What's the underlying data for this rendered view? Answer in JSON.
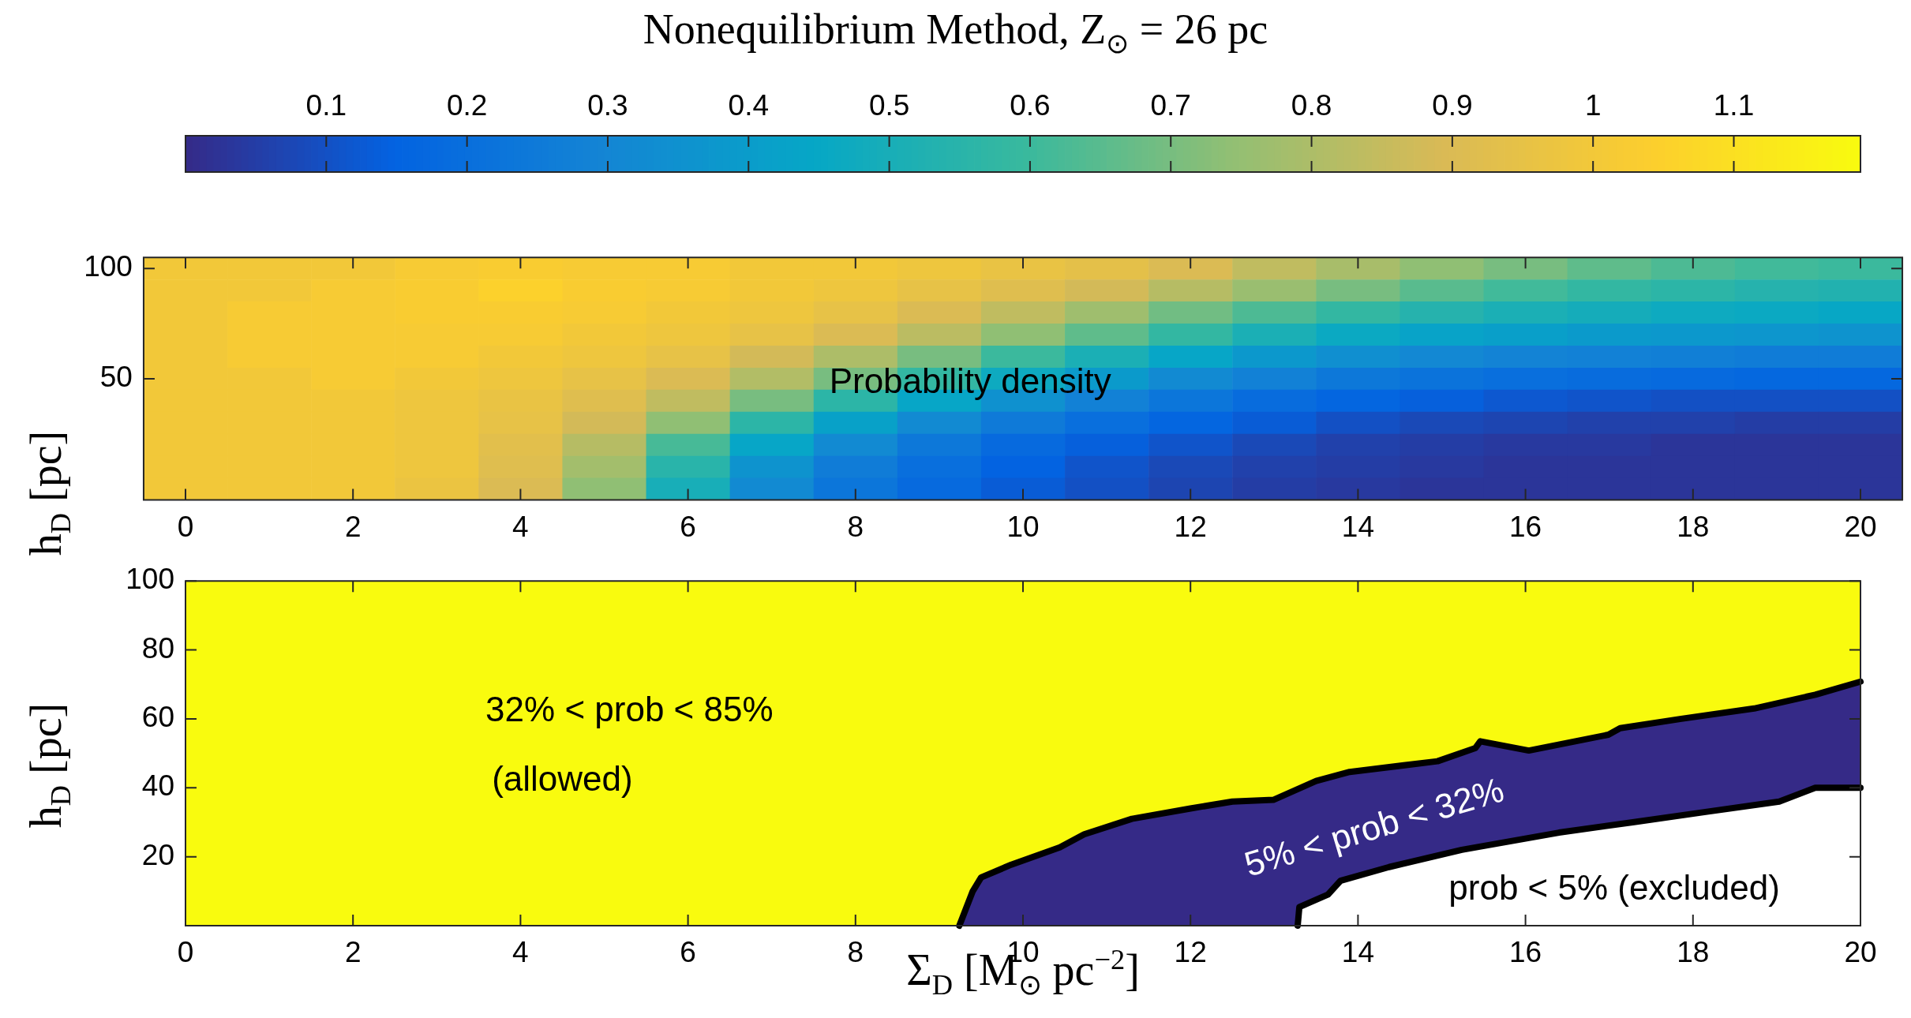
{
  "chart_data": [
    {
      "type": "heatmap",
      "title": "Nonequilibrium Method, Z$_{⊙}$ = 26 pc",
      "ylabel": "h$_{D}$ [pc]",
      "categories": [
        "0",
        null,
        "2",
        null,
        "4",
        null,
        "6",
        null,
        "8",
        null,
        "10",
        null,
        "12",
        null,
        "14",
        null,
        "16",
        null,
        "18",
        null,
        "20"
      ],
      "y_categories": [
        "100",
        null,
        null,
        null,
        null,
        "50",
        null,
        null,
        null,
        null,
        null
      ],
      "cells": [
        [
          1.0,
          1.0,
          1.0,
          1.02,
          1.03,
          1.02,
          1.02,
          1.0,
          1.0,
          0.98,
          0.96,
          0.94,
          0.9,
          0.84,
          0.79,
          0.74,
          0.7,
          0.66,
          0.63,
          0.61,
          0.6
        ],
        [
          1.0,
          1.0,
          1.02,
          1.03,
          1.05,
          1.03,
          1.02,
          1.0,
          0.98,
          0.95,
          0.92,
          0.88,
          0.82,
          0.76,
          0.7,
          0.65,
          0.61,
          0.58,
          0.56,
          0.54,
          0.53
        ],
        [
          1.0,
          1.02,
          1.02,
          1.03,
          1.03,
          1.02,
          1.0,
          0.98,
          0.95,
          0.9,
          0.84,
          0.77,
          0.69,
          0.63,
          0.58,
          0.54,
          0.51,
          0.49,
          0.47,
          0.46,
          0.45
        ],
        [
          1.0,
          1.02,
          1.02,
          1.02,
          1.02,
          1.0,
          0.98,
          0.95,
          0.9,
          0.83,
          0.74,
          0.66,
          0.58,
          0.51,
          0.46,
          0.43,
          0.41,
          0.39,
          0.38,
          0.37,
          0.36
        ],
        [
          1.0,
          1.02,
          1.02,
          1.02,
          1.0,
          0.98,
          0.95,
          0.88,
          0.8,
          0.7,
          0.6,
          0.51,
          0.44,
          0.38,
          0.34,
          0.31,
          0.29,
          0.28,
          0.27,
          0.26,
          0.26
        ],
        [
          1.0,
          1.0,
          1.02,
          1.0,
          0.98,
          0.95,
          0.9,
          0.81,
          0.7,
          0.58,
          0.47,
          0.39,
          0.32,
          0.28,
          0.24,
          0.22,
          0.2,
          0.19,
          0.18,
          0.17,
          0.17
        ],
        [
          1.0,
          1.0,
          1.0,
          0.98,
          0.96,
          0.92,
          0.84,
          0.7,
          0.56,
          0.44,
          0.35,
          0.28,
          0.23,
          0.19,
          0.16,
          0.14,
          0.12,
          0.11,
          0.1,
          0.1,
          0.1
        ],
        [
          1.0,
          1.0,
          1.0,
          0.98,
          0.95,
          0.88,
          0.74,
          0.56,
          0.42,
          0.32,
          0.25,
          0.2,
          0.16,
          0.13,
          0.1,
          0.08,
          0.07,
          0.06,
          0.06,
          0.05,
          0.05
        ],
        [
          1.0,
          1.0,
          1.0,
          0.98,
          0.93,
          0.82,
          0.62,
          0.44,
          0.32,
          0.24,
          0.18,
          0.14,
          0.11,
          0.08,
          0.06,
          0.05,
          0.04,
          0.04,
          0.03,
          0.03,
          0.03
        ],
        [
          1.0,
          1.0,
          1.0,
          0.98,
          0.92,
          0.78,
          0.55,
          0.36,
          0.26,
          0.2,
          0.15,
          0.11,
          0.08,
          0.06,
          0.05,
          0.04,
          0.03,
          0.03,
          0.03,
          0.03,
          0.03
        ],
        [
          1.0,
          1.0,
          1.0,
          0.97,
          0.9,
          0.74,
          0.5,
          0.32,
          0.23,
          0.18,
          0.13,
          0.1,
          0.07,
          0.05,
          0.04,
          0.03,
          0.03,
          0.03,
          0.03,
          0.03,
          0.03
        ]
      ],
      "clim": [
        0,
        1.19
      ],
      "cticks": [
        0.1,
        0.2,
        0.3,
        0.4,
        0.5,
        0.6,
        0.7,
        0.8,
        0.9,
        1,
        1.1
      ],
      "annotations": [
        "Probability density"
      ]
    },
    {
      "type": "area",
      "xlabel": "Σ$_{D}$ [M$_{⊙}$ pc$^{−2}$]",
      "ylabel": "h$_{D}$ [pc]",
      "marker": "none",
      "series": [
        {
          "color": "#352a87",
          "x": [
            9.24,
            9.4,
            9.5,
            9.86,
            10.44,
            10.73,
            11.3,
            12.0,
            12.5,
            12.99,
            13.5,
            13.9,
            14.95,
            15.4,
            15.46,
            16.04,
            16.99,
            17.13,
            17.86,
            18.73,
            19.46,
            20
          ],
          "values": [
            0,
            10,
            14,
            17.7,
            22.7,
            26.5,
            31,
            34,
            36,
            36.5,
            42,
            44.6,
            47.7,
            51.5,
            53.5,
            50.8,
            55.4,
            57.3,
            60,
            63,
            67,
            70.8
          ]
        },
        {
          "color": "#ffffff",
          "x": [
            13.28,
            13.3,
            13.64,
            13.79,
            14.37,
            15.24,
            16.4,
            17.28,
            18.15,
            19.03,
            19.46,
            20
          ],
          "values": [
            0,
            5.4,
            9,
            13,
            17,
            22,
            27,
            30,
            33,
            36,
            40,
            40
          ]
        }
      ],
      "bands": [
        {
          "axis": "y",
          "from": 0,
          "to": 100,
          "color": "#f9fb0e"
        }
      ],
      "xlim": [
        0,
        20
      ],
      "xticks": [
        0,
        2,
        4,
        6,
        8,
        10,
        12,
        14,
        16,
        18,
        20
      ],
      "ylim": [
        0,
        100
      ],
      "yticks": [
        20,
        40,
        60,
        80,
        100
      ],
      "annotations": [
        "32% < prob < 85%",
        "(allowed)",
        "5% < prob < 32%",
        "prob < 5% (excluded)"
      ]
    }
  ]
}
